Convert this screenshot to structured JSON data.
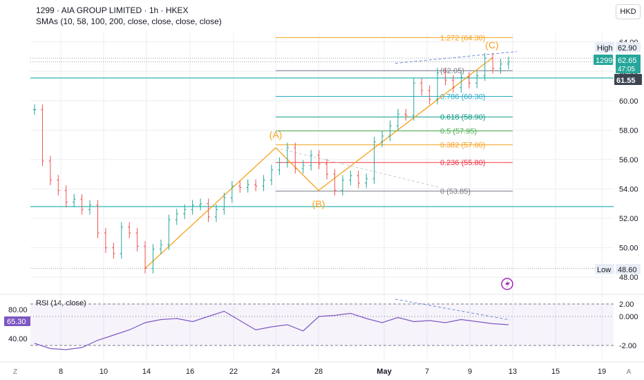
{
  "header": {
    "title": "1299 · AIA GROUP LIMITED · 1h · HKEX",
    "smas": "SMAs (10, 58, 100, 200, close, close, close, close)",
    "currency": "HKD"
  },
  "rsi": {
    "label": "RSI (14, close)",
    "current": "65.30",
    "left_ticks": [
      "80.00",
      "40.00"
    ],
    "right_ticks": [
      "2.00",
      "0.000",
      "-2.00"
    ]
  },
  "colors": {
    "accent": "#f7a11a",
    "up": "#26a69a",
    "down": "#ef5350",
    "level_line": "#2cb5b5",
    "rsi_line": "#7e57c2",
    "grid": "#eceef2"
  },
  "chart_data": {
    "type": "candlestick",
    "ylim": [
      47.3,
      64.6
    ],
    "y_ticks": [
      "64.00",
      "62.00",
      "60.00",
      "58.00",
      "56.00",
      "54.00",
      "52.00",
      "50.00",
      "48.00"
    ],
    "x_tick_labels": [
      "8",
      "10",
      "14",
      "16",
      "22",
      "24",
      "28",
      "May",
      "7",
      "9",
      "13",
      "15",
      "19"
    ],
    "fib_levels": [
      {
        "label": "1.272 (64.30)",
        "value": 64.3,
        "color": "#f7a11a"
      },
      {
        "label": "(62.05)",
        "value": 62.05,
        "color": "#787b86"
      },
      {
        "label": "0.786 (60.30)",
        "value": 60.3,
        "color": "#26a9c7"
      },
      {
        "label": "0.618 (58.90)",
        "value": 58.9,
        "color": "#089981"
      },
      {
        "label": "0.5 (57.95)",
        "value": 57.95,
        "color": "#4caf50"
      },
      {
        "label": "0.382 (57.00)",
        "value": 57.0,
        "color": "#f7a11a"
      },
      {
        "label": "0.236 (55.80)",
        "value": 55.8,
        "color": "#f23645"
      },
      {
        "label": "0 (53.85)",
        "value": 53.85,
        "color": "#787b86"
      }
    ],
    "wave_labels": [
      {
        "label": "(A)",
        "price": 56.8
      },
      {
        "label": "(B)",
        "price": 53.9
      },
      {
        "label": "(C)",
        "price": 62.9
      }
    ],
    "price_badges": {
      "high_label": "High",
      "high": "62.90",
      "symbol": "1299",
      "last": "62.65",
      "countdown": "47:05",
      "level": "61.55",
      "low_label": "Low",
      "low": "48.60"
    },
    "horizontal_levels": [
      61.55,
      52.8
    ],
    "series": [
      {
        "name": "AIA",
        "values": [
          59.4,
          55.9,
          54.6,
          53.9,
          53.1,
          53.3,
          52.6,
          52.9,
          51.0,
          50.0,
          49.6,
          51.4,
          51.0,
          50.1,
          48.6,
          49.9,
          50.2,
          51.9,
          52.3,
          52.6,
          52.9,
          53.0,
          52.1,
          52.6,
          53.4,
          54.2,
          54.1,
          54.3,
          54.2,
          54.6,
          55.3,
          55.8,
          56.8,
          55.4,
          55.6,
          56.3,
          55.7,
          55.0,
          53.9,
          54.6,
          54.9,
          54.4,
          54.7,
          57.2,
          57.6,
          58.3,
          59.1,
          59.0,
          61.2,
          60.7,
          60.1,
          61.9,
          61.4,
          60.9,
          61.6,
          61.2,
          61.7,
          62.9,
          62.2,
          62.5,
          62.65
        ]
      },
      {
        "name": "RSI",
        "values": [
          -1.8,
          -2.3,
          -2.4,
          -2.2,
          -1.5,
          -1.0,
          -0.5,
          0.2,
          0.5,
          0.6,
          0.3,
          0.8,
          1.3,
          0.4,
          -0.5,
          -0.2,
          0.0,
          -0.6,
          0.8,
          0.9,
          1.1,
          0.6,
          0.2,
          0.7,
          0.3,
          0.4,
          0.2,
          0.5,
          0.3,
          0.1,
          0.0
        ]
      }
    ]
  }
}
